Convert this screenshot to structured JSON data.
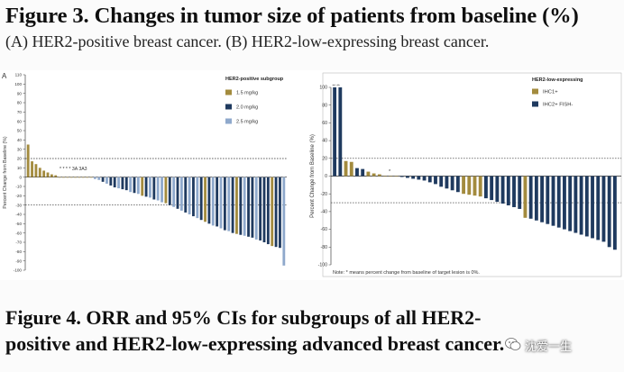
{
  "figure3": {
    "title": "Figure 3. Changes in tumor size of patients from baseline (%)",
    "subtitle": "(A)  HER2-positive breast cancer.  (B)  HER2-low-expressing breast cancer.",
    "panel_label": "A"
  },
  "figure4": {
    "line1": "Figure 4. ORR and 95% CIs  for subgroups of all HER2-",
    "line2": "positive and HER2-low-expressing advanced breast cancer."
  },
  "watermark": {
    "text": "沈爱一生",
    "icon": "wechat-icon"
  },
  "chart_data": [
    {
      "type": "bar",
      "chart": "waterfall",
      "ylabel": "Percent Change from Baseline (%)",
      "ylim": [
        -100,
        110
      ],
      "yticks": [
        110,
        100,
        90,
        80,
        70,
        60,
        50,
        40,
        30,
        20,
        10,
        0,
        -10,
        -20,
        -30,
        -40,
        -50,
        -60,
        -70,
        -80,
        -90,
        -100
      ],
      "reference_lines": [
        20,
        -30
      ],
      "legend": {
        "title": "HER2-positive subgroup",
        "placement": "top-right"
      },
      "annotation": "* * * * 3A 3A3",
      "series": [
        {
          "name": "1.5 mg/kg",
          "color": "#a38b3e"
        },
        {
          "name": "2.0 mg/kg",
          "color": "#1f3a5f"
        },
        {
          "name": "2.5 mg/kg",
          "color": "#8fa9cc"
        }
      ],
      "bars": [
        {
          "value": 35,
          "series": 0
        },
        {
          "value": 17,
          "series": 0
        },
        {
          "value": 14,
          "series": 0
        },
        {
          "value": 10,
          "series": 0
        },
        {
          "value": 7,
          "series": 0
        },
        {
          "value": 5,
          "series": 0
        },
        {
          "value": 3,
          "series": 0
        },
        {
          "value": 2,
          "series": 0
        },
        {
          "value": 0,
          "series": 0
        },
        {
          "value": 0,
          "series": 0
        },
        {
          "value": 0,
          "series": 0
        },
        {
          "value": 0,
          "series": 0
        },
        {
          "value": 0,
          "series": 0
        },
        {
          "value": 0,
          "series": 0
        },
        {
          "value": 0,
          "series": 0
        },
        {
          "value": 0,
          "series": 0
        },
        {
          "value": 0,
          "series": 0
        },
        {
          "value": -2,
          "series": 2
        },
        {
          "value": -3,
          "series": 2
        },
        {
          "value": -5,
          "series": 1
        },
        {
          "value": -7,
          "series": 2
        },
        {
          "value": -9,
          "series": 1
        },
        {
          "value": -11,
          "series": 1
        },
        {
          "value": -12,
          "series": 2
        },
        {
          "value": -13,
          "series": 1
        },
        {
          "value": -14,
          "series": 1
        },
        {
          "value": -16,
          "series": 2
        },
        {
          "value": -17,
          "series": 1
        },
        {
          "value": -18,
          "series": 2
        },
        {
          "value": -20,
          "series": 0
        },
        {
          "value": -21,
          "series": 1
        },
        {
          "value": -22,
          "series": 2
        },
        {
          "value": -24,
          "series": 1
        },
        {
          "value": -25,
          "series": 2
        },
        {
          "value": -27,
          "series": 2
        },
        {
          "value": -28,
          "series": 0
        },
        {
          "value": -30,
          "series": 1
        },
        {
          "value": -32,
          "series": 2
        },
        {
          "value": -34,
          "series": 1
        },
        {
          "value": -36,
          "series": 2
        },
        {
          "value": -38,
          "series": 1
        },
        {
          "value": -40,
          "series": 2
        },
        {
          "value": -42,
          "series": 1
        },
        {
          "value": -44,
          "series": 2
        },
        {
          "value": -46,
          "series": 1
        },
        {
          "value": -48,
          "series": 0
        },
        {
          "value": -50,
          "series": 1
        },
        {
          "value": -52,
          "series": 2
        },
        {
          "value": -53,
          "series": 1
        },
        {
          "value": -55,
          "series": 2
        },
        {
          "value": -57,
          "series": 1
        },
        {
          "value": -58,
          "series": 2
        },
        {
          "value": -60,
          "series": 1
        },
        {
          "value": -61,
          "series": 0
        },
        {
          "value": -62,
          "series": 1
        },
        {
          "value": -63,
          "series": 2
        },
        {
          "value": -64,
          "series": 1
        },
        {
          "value": -65,
          "series": 1
        },
        {
          "value": -67,
          "series": 2
        },
        {
          "value": -68,
          "series": 1
        },
        {
          "value": -70,
          "series": 1
        },
        {
          "value": -72,
          "series": 1
        },
        {
          "value": -74,
          "series": 0
        },
        {
          "value": -75,
          "series": 1
        },
        {
          "value": -76,
          "series": 1
        },
        {
          "value": -95,
          "series": 2
        }
      ]
    },
    {
      "type": "bar",
      "chart": "waterfall",
      "ylabel": "Percent Change from Baseline (%)",
      "ylim": [
        -100,
        100
      ],
      "yticks": [
        100,
        80,
        60,
        40,
        20,
        0,
        -20,
        -40,
        -60,
        -80,
        -100
      ],
      "reference_lines": [
        20,
        -30
      ],
      "legend": {
        "title": "HER2-low-expressing",
        "placement": "top-right"
      },
      "annotation": "*",
      "top_marks": "** **",
      "note": "Note: * means percent change from baseline of target lesion is 0%.",
      "series": [
        {
          "name": "IHC1+",
          "color": "#a38b3e"
        },
        {
          "name": "IHC2+ FISH-",
          "color": "#1f3a5f"
        }
      ],
      "bars": [
        {
          "value": 100,
          "series": 1
        },
        {
          "value": 100,
          "series": 1
        },
        {
          "value": 17,
          "series": 0
        },
        {
          "value": 16,
          "series": 0
        },
        {
          "value": 9,
          "series": 1
        },
        {
          "value": 8,
          "series": 1
        },
        {
          "value": 5,
          "series": 0
        },
        {
          "value": 3,
          "series": 0
        },
        {
          "value": 2,
          "series": 0
        },
        {
          "value": 0,
          "series": 0
        },
        {
          "value": 0,
          "series": 0
        },
        {
          "value": 0,
          "series": 0
        },
        {
          "value": -1,
          "series": 1
        },
        {
          "value": -2,
          "series": 1
        },
        {
          "value": -3,
          "series": 1
        },
        {
          "value": -4,
          "series": 1
        },
        {
          "value": -5,
          "series": 1
        },
        {
          "value": -7,
          "series": 1
        },
        {
          "value": -9,
          "series": 1
        },
        {
          "value": -12,
          "series": 1
        },
        {
          "value": -14,
          "series": 1
        },
        {
          "value": -16,
          "series": 1
        },
        {
          "value": -18,
          "series": 1
        },
        {
          "value": -20,
          "series": 0
        },
        {
          "value": -21,
          "series": 0
        },
        {
          "value": -22,
          "series": 0
        },
        {
          "value": -23,
          "series": 0
        },
        {
          "value": -25,
          "series": 1
        },
        {
          "value": -27,
          "series": 1
        },
        {
          "value": -29,
          "series": 1
        },
        {
          "value": -31,
          "series": 1
        },
        {
          "value": -33,
          "series": 1
        },
        {
          "value": -35,
          "series": 1
        },
        {
          "value": -37,
          "series": 1
        },
        {
          "value": -47,
          "series": 0
        },
        {
          "value": -48,
          "series": 1
        },
        {
          "value": -50,
          "series": 1
        },
        {
          "value": -52,
          "series": 1
        },
        {
          "value": -54,
          "series": 1
        },
        {
          "value": -56,
          "series": 1
        },
        {
          "value": -58,
          "series": 1
        },
        {
          "value": -60,
          "series": 1
        },
        {
          "value": -62,
          "series": 1
        },
        {
          "value": -64,
          "series": 1
        },
        {
          "value": -66,
          "series": 1
        },
        {
          "value": -68,
          "series": 1
        },
        {
          "value": -70,
          "series": 1
        },
        {
          "value": -72,
          "series": 1
        },
        {
          "value": -74,
          "series": 1
        },
        {
          "value": -80,
          "series": 1
        },
        {
          "value": -83,
          "series": 1
        }
      ]
    }
  ]
}
